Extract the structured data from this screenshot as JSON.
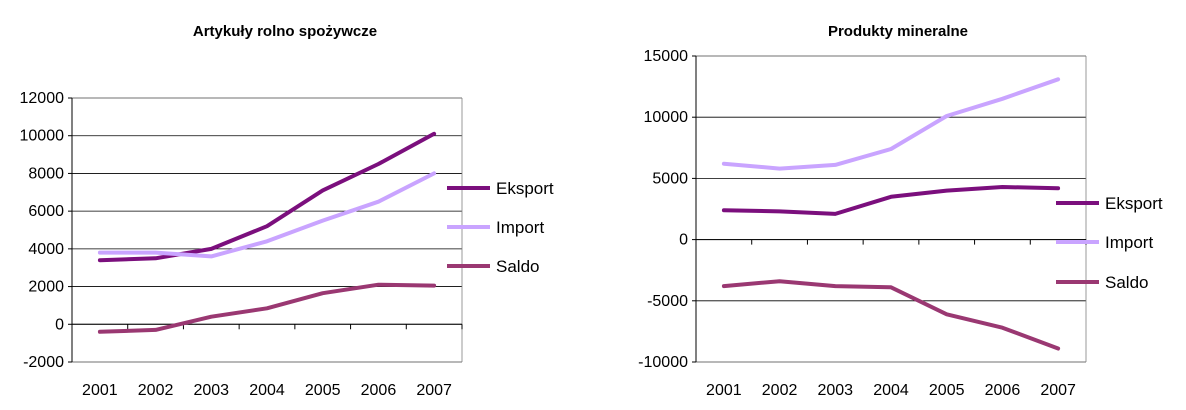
{
  "chart_data": [
    {
      "type": "line",
      "title": "Artykuły rolno spożywcze",
      "xlabel": "",
      "ylabel": "",
      "x": [
        "2001",
        "2002",
        "2003",
        "2004",
        "2005",
        "2006",
        "2007"
      ],
      "ylim": [
        -2000,
        12000
      ],
      "yticks": [
        -2000,
        0,
        2000,
        4000,
        6000,
        8000,
        10000,
        12000
      ],
      "grid": true,
      "legend": "right",
      "series": [
        {
          "name": "Eksport",
          "color": "#7b0f7d",
          "values": [
            3400,
            3500,
            4000,
            5200,
            7100,
            8500,
            10100
          ]
        },
        {
          "name": "Import",
          "color": "#c9a4ff",
          "values": [
            3800,
            3800,
            3600,
            4400,
            5500,
            6500,
            8000
          ]
        },
        {
          "name": "Saldo",
          "color": "#9a3872",
          "values": [
            -400,
            -300,
            400,
            850,
            1650,
            2100,
            2050
          ]
        }
      ]
    },
    {
      "type": "line",
      "title": "Produkty mineralne",
      "xlabel": "",
      "ylabel": "",
      "x": [
        "2001",
        "2002",
        "2003",
        "2004",
        "2005",
        "2006",
        "2007"
      ],
      "ylim": [
        -10000,
        15000
      ],
      "yticks": [
        -10000,
        -5000,
        0,
        5000,
        10000,
        15000
      ],
      "grid": true,
      "legend": "right",
      "series": [
        {
          "name": "Eksport",
          "color": "#7b0f7d",
          "values": [
            2400,
            2300,
            2100,
            3500,
            4000,
            4300,
            4200
          ]
        },
        {
          "name": "Import",
          "color": "#c9a4ff",
          "values": [
            6200,
            5800,
            6100,
            7400,
            10100,
            11500,
            13100
          ]
        },
        {
          "name": "Saldo",
          "color": "#9a3872",
          "values": [
            -3800,
            -3400,
            -3800,
            -3900,
            -6100,
            -7200,
            -8900
          ]
        }
      ]
    }
  ]
}
